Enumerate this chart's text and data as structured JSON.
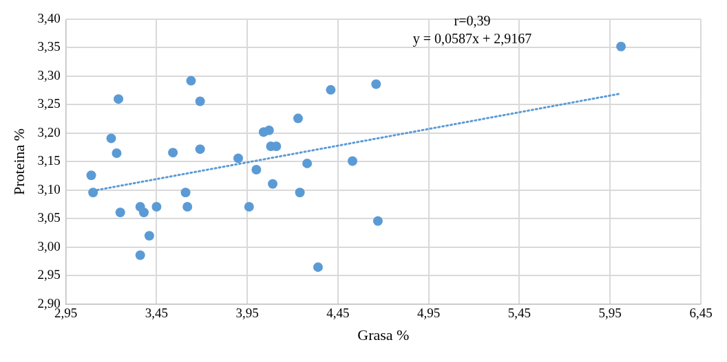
{
  "chart_data": {
    "type": "scatter",
    "xlabel": "Grasa %",
    "ylabel": "Proteina %",
    "annotations": [
      "r=0,39",
      "y = 0,0587x + 2,9167"
    ],
    "xlim": [
      2.95,
      6.45
    ],
    "xticks": [
      {
        "value": 2.95,
        "label": "2,95"
      },
      {
        "value": 3.45,
        "label": "3,45"
      },
      {
        "value": 3.95,
        "label": "3,95"
      },
      {
        "value": 4.45,
        "label": "4,45"
      },
      {
        "value": 4.95,
        "label": "4,95"
      },
      {
        "value": 5.45,
        "label": "5,45"
      },
      {
        "value": 5.95,
        "label": "5,95"
      },
      {
        "value": 6.45,
        "label": "6,45"
      }
    ],
    "ylim": [
      2.9,
      3.4
    ],
    "yticks": [
      {
        "value": 2.9,
        "label": "2,90"
      },
      {
        "value": 2.95,
        "label": "2,95"
      },
      {
        "value": 3.0,
        "label": "3,00"
      },
      {
        "value": 3.05,
        "label": "3,05"
      },
      {
        "value": 3.1,
        "label": "3,10"
      },
      {
        "value": 3.15,
        "label": "3,15"
      },
      {
        "value": 3.2,
        "label": "3,20"
      },
      {
        "value": 3.25,
        "label": "3,25"
      },
      {
        "value": 3.3,
        "label": "3,30"
      },
      {
        "value": 3.35,
        "label": "3,35"
      },
      {
        "value": 3.4,
        "label": "3,40"
      }
    ],
    "grid": true,
    "marker": "circle",
    "series": [
      {
        "color": "#5b9bd5",
        "x": [
          3.09,
          3.1,
          3.2,
          3.23,
          3.24,
          3.25,
          3.36,
          3.36,
          3.38,
          3.41,
          3.45,
          3.54,
          3.61,
          3.62,
          3.64,
          3.69,
          3.69,
          3.9,
          3.96,
          4.0,
          4.04,
          4.07,
          4.08,
          4.09,
          4.11,
          4.23,
          4.24,
          4.28,
          4.34,
          4.41,
          4.53,
          4.66,
          4.67,
          6.01
        ],
        "values": [
          3.126,
          3.096,
          3.191,
          3.165,
          3.26,
          3.061,
          3.071,
          2.986,
          3.061,
          3.02,
          3.071,
          3.166,
          3.096,
          3.071,
          3.292,
          3.256,
          3.172,
          3.156,
          3.071,
          3.136,
          3.202,
          3.205,
          3.177,
          3.111,
          3.177,
          3.226,
          3.096,
          3.147,
          2.965,
          3.276,
          3.151,
          3.286,
          3.046,
          3.352
        ]
      },
      {
        "type": "line",
        "color": "#5b9bd5",
        "line_style": "dotted",
        "marker": "none",
        "x": [
          3.1,
          6.0
        ],
        "values": [
          3.099,
          3.269
        ]
      }
    ]
  }
}
